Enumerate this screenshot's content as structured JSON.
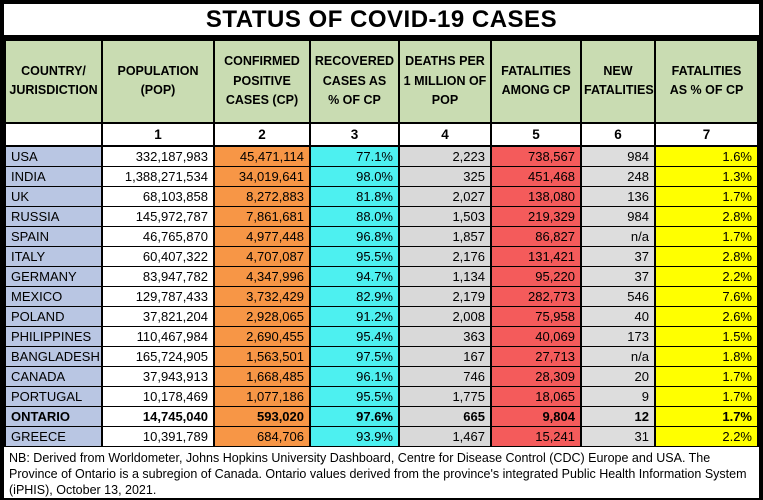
{
  "title": "STATUS OF COVID-19 CASES",
  "colors": {
    "header_green": "#C9DCB2",
    "country_blue": "#B9C6E3",
    "population_white": "#FFFFFF",
    "cases_orange": "#F79646",
    "recovered_cyan": "#4DF0F0",
    "deaths_gray": "#D9D9D9",
    "fatalities_red": "#F45B5B",
    "new_fatalities_gray": "#DDDDDD",
    "fatality_pct_yellow": "#FFFF00"
  },
  "table": {
    "headers": [
      "COUNTRY/\nJURISDICTION",
      "POPULATION\n(POP)",
      "CONFIRMED\nPOSITIVE\nCASES (CP)",
      "RECOVERED\nCASES AS\n% OF CP",
      "DEATHS PER\n1 MILLION OF\nPOP",
      "FATALITIES\nAMONG CP",
      "NEW\nFATALITIES",
      "FATALITIES\nAS % OF CP"
    ],
    "column_numbers": [
      "",
      "1",
      "2",
      "3",
      "4",
      "5",
      "6",
      "7"
    ],
    "rows": [
      {
        "country": "USA",
        "bold": false,
        "values": [
          "332,187,983",
          "45,471,114",
          "77.1%",
          "2,223",
          "738,567",
          "984",
          "1.6%"
        ]
      },
      {
        "country": "INDIA",
        "bold": false,
        "values": [
          "1,388,271,534",
          "34,019,641",
          "98.0%",
          "325",
          "451,468",
          "248",
          "1.3%"
        ]
      },
      {
        "country": "UK",
        "bold": false,
        "values": [
          "68,103,858",
          "8,272,883",
          "81.8%",
          "2,027",
          "138,080",
          "136",
          "1.7%"
        ]
      },
      {
        "country": "RUSSIA",
        "bold": false,
        "values": [
          "145,972,787",
          "7,861,681",
          "88.0%",
          "1,503",
          "219,329",
          "984",
          "2.8%"
        ]
      },
      {
        "country": "SPAIN",
        "bold": false,
        "values": [
          "46,765,870",
          "4,977,448",
          "96.8%",
          "1,857",
          "86,827",
          "n/a",
          "1.7%"
        ]
      },
      {
        "country": "ITALY",
        "bold": false,
        "values": [
          "60,407,322",
          "4,707,087",
          "95.5%",
          "2,176",
          "131,421",
          "37",
          "2.8%"
        ]
      },
      {
        "country": "GERMANY",
        "bold": false,
        "values": [
          "83,947,782",
          "4,347,996",
          "94.7%",
          "1,134",
          "95,220",
          "37",
          "2.2%"
        ]
      },
      {
        "country": "MEXICO",
        "bold": false,
        "values": [
          "129,787,433",
          "3,732,429",
          "82.9%",
          "2,179",
          "282,773",
          "546",
          "7.6%"
        ]
      },
      {
        "country": "POLAND",
        "bold": false,
        "values": [
          "37,821,204",
          "2,928,065",
          "91.2%",
          "2,008",
          "75,958",
          "40",
          "2.6%"
        ]
      },
      {
        "country": "PHILIPPINES",
        "bold": false,
        "values": [
          "110,467,984",
          "2,690,455",
          "95.4%",
          "363",
          "40,069",
          "173",
          "1.5%"
        ]
      },
      {
        "country": "BANGLADESH",
        "bold": false,
        "values": [
          "165,724,905",
          "1,563,501",
          "97.5%",
          "167",
          "27,713",
          "n/a",
          "1.8%"
        ]
      },
      {
        "country": "CANADA",
        "bold": false,
        "values": [
          "37,943,913",
          "1,668,485",
          "96.1%",
          "746",
          "28,309",
          "20",
          "1.7%"
        ]
      },
      {
        "country": "PORTUGAL",
        "bold": false,
        "values": [
          "10,178,469",
          "1,077,186",
          "95.5%",
          "1,775",
          "18,065",
          "9",
          "1.7%"
        ]
      },
      {
        "country": "ONTARIO",
        "bold": true,
        "values": [
          "14,745,040",
          "593,020",
          "97.6%",
          "665",
          "9,804",
          "12",
          "1.7%"
        ]
      },
      {
        "country": "GREECE",
        "bold": false,
        "values": [
          "10,391,789",
          "684,706",
          "93.9%",
          "1,467",
          "15,241",
          "31",
          "2.2%"
        ]
      }
    ]
  },
  "footnote": "NB: Derived from Worldometer, Johns Hopkins University Dashboard, Centre for Disease Control (CDC) Europe and USA. The Province of Ontario is a subregion of Canada. Ontario values derived from the province's integrated Public Health Information System (iPHIS), October 13, 2021."
}
